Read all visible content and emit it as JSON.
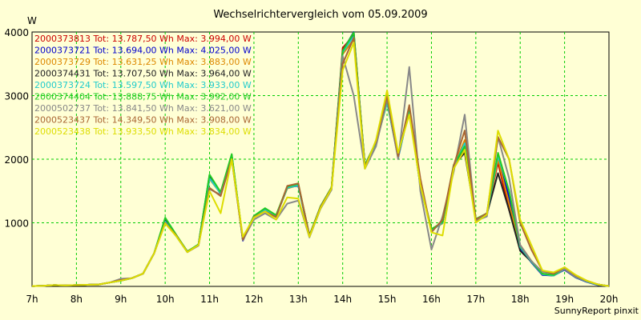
{
  "chart_data": {
    "type": "line",
    "title": "Wechselrichtervergleich vom 05.09.2009",
    "ylabel": "W",
    "xlabel": "",
    "credit": "SunnyReport pinxit",
    "x_range": [
      7,
      20
    ],
    "ylim": [
      0,
      4000
    ],
    "grid": true,
    "legend_position": "top-left",
    "x_ticks": [
      {
        "label": "7h",
        "value": 7
      },
      {
        "label": "8h",
        "value": 8
      },
      {
        "label": "9h",
        "value": 9
      },
      {
        "label": "10h",
        "value": 10
      },
      {
        "label": "11h",
        "value": 11
      },
      {
        "label": "12h",
        "value": 12
      },
      {
        "label": "13h",
        "value": 13
      },
      {
        "label": "14h",
        "value": 14
      },
      {
        "label": "15h",
        "value": 15
      },
      {
        "label": "16h",
        "value": 16
      },
      {
        "label": "17h",
        "value": 17
      },
      {
        "label": "18h",
        "value": 18
      },
      {
        "label": "19h",
        "value": 19
      },
      {
        "label": "20h",
        "value": 20
      }
    ],
    "y_ticks": [
      {
        "label": "1000",
        "value": 1000
      },
      {
        "label": "2000",
        "value": 2000
      },
      {
        "label": "3000",
        "value": 3000
      },
      {
        "label": "4000",
        "value": 4000
      }
    ],
    "x": [
      7.0,
      7.25,
      7.5,
      7.75,
      8.0,
      8.25,
      8.5,
      8.75,
      9.0,
      9.25,
      9.5,
      9.75,
      10.0,
      10.25,
      10.5,
      10.75,
      11.0,
      11.25,
      11.5,
      11.75,
      12.0,
      12.25,
      12.5,
      12.75,
      13.0,
      13.25,
      13.5,
      13.75,
      14.0,
      14.25,
      14.5,
      14.75,
      15.0,
      15.25,
      15.5,
      15.75,
      16.0,
      16.25,
      16.5,
      16.75,
      17.0,
      17.25,
      17.5,
      17.75,
      18.0,
      18.25,
      18.5,
      18.75,
      19.0,
      19.25,
      19.5,
      19.75,
      20.0
    ],
    "series": [
      {
        "name": "2000373813 Tot: 13.787,50 Wh Max: 3.994,00 W",
        "color": "#cc0000",
        "values": [
          5,
          10,
          20,
          15,
          20,
          25,
          30,
          60,
          90,
          130,
          200,
          520,
          1020,
          800,
          550,
          650,
          1700,
          1480,
          2050,
          750,
          1100,
          1200,
          1120,
          1550,
          1600,
          800,
          1250,
          1550,
          3750,
          3950,
          1900,
          2250,
          2900,
          2050,
          2800,
          1600,
          900,
          1000,
          1900,
          2250,
          1050,
          1150,
          1950,
          1200,
          650,
          400,
          200,
          180,
          280,
          150,
          80,
          30,
          5
        ]
      },
      {
        "name": "2000373721 Tot: 13.694,00 Wh Max: 4.025,00 W",
        "color": "#0000cc",
        "values": [
          5,
          10,
          20,
          15,
          20,
          25,
          30,
          60,
          90,
          130,
          200,
          520,
          1040,
          800,
          540,
          660,
          1750,
          1450,
          2070,
          720,
          1100,
          1220,
          1100,
          1560,
          1580,
          790,
          1240,
          1540,
          3700,
          4025,
          1880,
          2260,
          2920,
          2020,
          2780,
          1580,
          880,
          1010,
          1880,
          2180,
          1040,
          1130,
          2050,
          1400,
          600,
          380,
          180,
          170,
          260,
          140,
          70,
          20,
          5
        ]
      },
      {
        "name": "2000373729 Tot: 13.631,25 Wh Max: 3.883,00 W",
        "color": "#dd8800",
        "values": [
          5,
          10,
          20,
          15,
          20,
          25,
          30,
          60,
          90,
          130,
          200,
          520,
          1010,
          790,
          540,
          650,
          1690,
          1460,
          2040,
          740,
          1090,
          1190,
          1110,
          1540,
          1590,
          790,
          1240,
          1540,
          3650,
          3883,
          1890,
          2240,
          2890,
          2040,
          2790,
          1590,
          890,
          990,
          1890,
          2300,
          1040,
          1140,
          2000,
          1300,
          620,
          390,
          190,
          170,
          270,
          145,
          75,
          25,
          5
        ]
      },
      {
        "name": "2000374431 Tot: 13.707,50 Wh Max: 3.964,00 W",
        "color": "#222222",
        "values": [
          5,
          10,
          20,
          15,
          20,
          25,
          30,
          60,
          90,
          130,
          200,
          520,
          1030,
          800,
          550,
          650,
          1730,
          1470,
          2060,
          730,
          1100,
          1210,
          1110,
          1550,
          1590,
          800,
          1250,
          1550,
          3680,
          3964,
          1900,
          2250,
          2900,
          2040,
          2790,
          1590,
          890,
          1000,
          1900,
          2100,
          1050,
          1140,
          1780,
          1200,
          560,
          390,
          190,
          170,
          270,
          150,
          80,
          30,
          5
        ]
      },
      {
        "name": "2000373724 Tot: 13.597,50 Wh Max: 3.933,00 W",
        "color": "#22cccc",
        "values": [
          5,
          10,
          20,
          15,
          20,
          25,
          30,
          60,
          90,
          130,
          200,
          520,
          1020,
          790,
          540,
          650,
          1700,
          1460,
          2050,
          740,
          1090,
          1200,
          1110,
          1550,
          1590,
          790,
          1240,
          1540,
          3680,
          3933,
          1890,
          2250,
          2890,
          2030,
          2780,
          1580,
          880,
          1000,
          1880,
          2250,
          1040,
          1140,
          2050,
          1500,
          620,
          390,
          190,
          170,
          270,
          145,
          75,
          25,
          5
        ]
      },
      {
        "name": "2000374404 Tot: 13.888,75 Wh Max: 3.992,00 W",
        "color": "#22cc22",
        "values": [
          5,
          10,
          20,
          15,
          20,
          25,
          30,
          60,
          90,
          130,
          200,
          520,
          1080,
          810,
          550,
          660,
          1760,
          1480,
          2080,
          740,
          1110,
          1230,
          1120,
          1570,
          1610,
          800,
          1260,
          1560,
          3700,
          3992,
          1910,
          2270,
          2930,
          2060,
          2820,
          1620,
          900,
          1010,
          1910,
          2200,
          1060,
          1150,
          2100,
          1500,
          640,
          400,
          200,
          180,
          280,
          150,
          80,
          30,
          5
        ]
      },
      {
        "name": "2000502737 Tot: 13.841,50 Wh Max: 3.621,00 W",
        "color": "#888888",
        "values": [
          5,
          10,
          20,
          15,
          20,
          25,
          30,
          60,
          120,
          130,
          200,
          520,
          1000,
          790,
          540,
          640,
          1530,
          1440,
          2000,
          730,
          1050,
          1150,
          1050,
          1300,
          1350,
          770,
          1220,
          1520,
          3621,
          3000,
          1850,
          2200,
          2950,
          2000,
          3450,
          1500,
          580,
          1100,
          1800,
          2700,
          1030,
          1100,
          2350,
          1700,
          650,
          400,
          230,
          200,
          270,
          150,
          80,
          30,
          5
        ]
      },
      {
        "name": "2000523437 Tot: 14.349,50 Wh Max: 3.908,00 W",
        "color": "#aa6633",
        "values": [
          5,
          10,
          20,
          15,
          20,
          25,
          30,
          60,
          100,
          130,
          200,
          520,
          1000,
          800,
          540,
          650,
          1550,
          1420,
          2000,
          740,
          1090,
          1180,
          1090,
          1580,
          1620,
          790,
          1250,
          1550,
          3500,
          3908,
          1880,
          2280,
          3000,
          2050,
          2850,
          1700,
          850,
          1050,
          1900,
          2450,
          1050,
          1150,
          2350,
          2000,
          1000,
          580,
          250,
          200,
          300,
          170,
          90,
          30,
          5
        ]
      },
      {
        "name": "2000523438 Tot: 13.933,50 Wh Max: 3.834,00 W",
        "color": "#dddd00",
        "values": [
          5,
          10,
          20,
          15,
          20,
          25,
          30,
          60,
          90,
          130,
          200,
          520,
          990,
          790,
          540,
          650,
          1500,
          1150,
          2000,
          780,
          1080,
          1180,
          1050,
          1400,
          1380,
          780,
          1230,
          1540,
          3400,
          3834,
          1850,
          2300,
          3080,
          2100,
          2700,
          1600,
          850,
          800,
          1850,
          2150,
          1000,
          1130,
          2450,
          2000,
          1050,
          650,
          250,
          220,
          300,
          180,
          90,
          30,
          5
        ]
      }
    ]
  }
}
